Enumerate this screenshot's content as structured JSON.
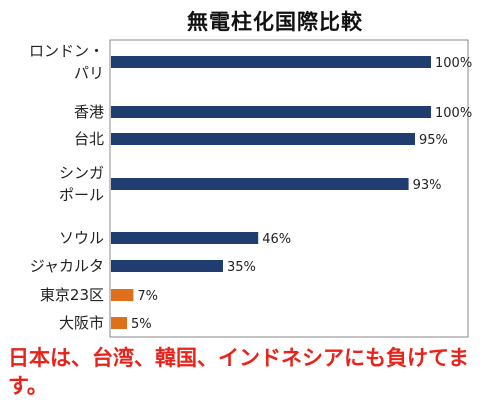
{
  "chart_data": {
    "type": "bar",
    "orientation": "horizontal",
    "title": "無電柱化国際比較",
    "xlabel": "",
    "ylabel": "",
    "xlim": [
      0,
      100
    ],
    "grid": false,
    "categories": [
      [
        "ロンドン・",
        "パリ"
      ],
      [
        "香港"
      ],
      [
        "台北"
      ],
      [
        "シンガ",
        "ポール"
      ],
      [
        "ソウル"
      ],
      [
        "ジャカルタ"
      ],
      [
        "東京23区"
      ],
      [
        "大阪市"
      ]
    ],
    "values": [
      100,
      100,
      95,
      93,
      46,
      35,
      7,
      5
    ],
    "value_labels": [
      "100%",
      "100%",
      "95%",
      "93%",
      "46%",
      "35%",
      "7%",
      "5%"
    ],
    "colors": [
      "#1f3d6e",
      "#1f3d6e",
      "#1f3d6e",
      "#1f3d6e",
      "#1f3d6e",
      "#1f3d6e",
      "#e06f1b",
      "#e06f1b"
    ]
  },
  "note": "日本は、台湾、韓国、インドネシアにも負けてます。"
}
